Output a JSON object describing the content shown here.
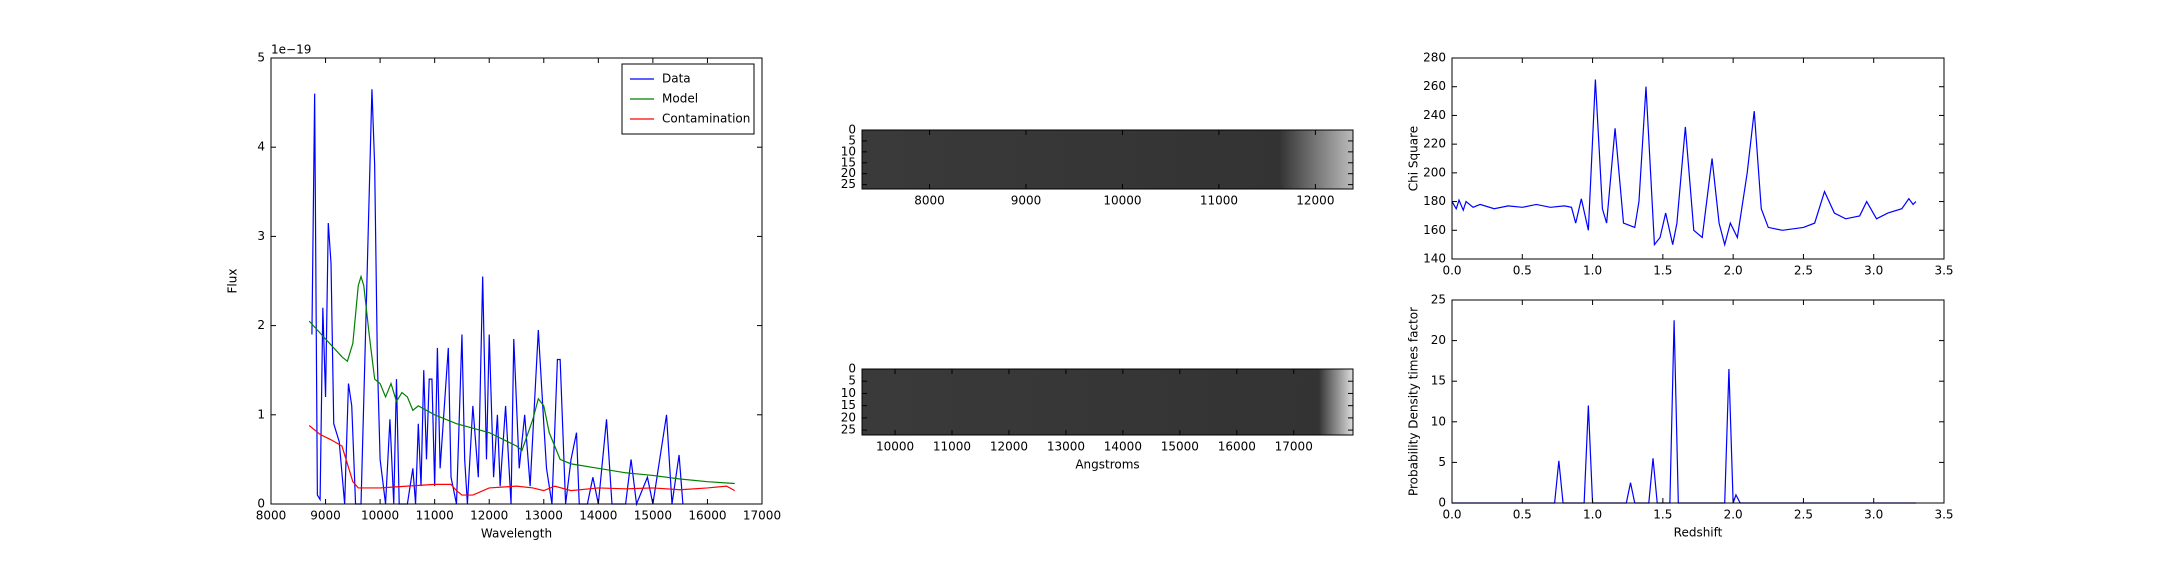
{
  "chart_data": [
    {
      "type": "line",
      "xlabel": "Wavelength",
      "ylabel": "Flux",
      "offset_label": "1e−19",
      "xlim": [
        8000,
        17000
      ],
      "xticks": [
        8000,
        9000,
        10000,
        11000,
        12000,
        13000,
        14000,
        15000,
        16000,
        17000
      ],
      "ylim": [
        0,
        5
      ],
      "yticks": [
        0,
        1,
        2,
        3,
        4,
        5
      ],
      "legend": "upper right",
      "series": [
        {
          "name": "Data",
          "color": "#0000ff",
          "x": [
            8750,
            8800,
            8850,
            8900,
            8950,
            9000,
            9050,
            9100,
            9150,
            9250,
            9350,
            9420,
            9480,
            9550,
            9650,
            9750,
            9850,
            9900,
            9950,
            10000,
            10100,
            10180,
            10250,
            10300,
            10350,
            10500,
            10600,
            10650,
            10700,
            10750,
            10800,
            10850,
            10900,
            10950,
            11000,
            11050,
            11100,
            11200,
            11250,
            11300,
            11400,
            11500,
            11550,
            11600,
            11700,
            11800,
            11880,
            11950,
            12000,
            12080,
            12150,
            12200,
            12300,
            12400,
            12450,
            12550,
            12650,
            12750,
            12900,
            13000,
            13050,
            13150,
            13250,
            13300,
            13400,
            13500,
            13600,
            13650,
            13800,
            13900,
            14000,
            14150,
            14250,
            14500,
            14600,
            14700,
            14900,
            15000,
            15250,
            15350,
            15480,
            15550
          ],
          "values": [
            1.9,
            4.6,
            0.1,
            0.05,
            2.2,
            1.2,
            3.15,
            2.7,
            0.9,
            0.7,
            0,
            1.35,
            1.1,
            0,
            0,
            2.3,
            4.65,
            3.8,
            1.6,
            0.5,
            0,
            0.95,
            0,
            1.4,
            0,
            0,
            0.4,
            0,
            0.9,
            0.2,
            1.5,
            0.5,
            1.4,
            1.4,
            0.2,
            1.75,
            0.4,
            1.3,
            1.75,
            0.3,
            0,
            1.9,
            0.5,
            0,
            1.1,
            0.3,
            2.55,
            0.5,
            1.9,
            0.3,
            1.0,
            0.2,
            1.1,
            0,
            1.85,
            0.4,
            1.0,
            0.2,
            1.95,
            0.9,
            0.4,
            0,
            1.62,
            1.62,
            0,
            0.5,
            0.8,
            0,
            0,
            0.3,
            0,
            0.95,
            0,
            0,
            0.5,
            0,
            0.3,
            0,
            1.0,
            0,
            0.55,
            0
          ]
        },
        {
          "name": "Model",
          "color": "#008000",
          "x": [
            8700,
            9000,
            9300,
            9400,
            9500,
            9600,
            9650,
            9700,
            9800,
            9900,
            10000,
            10100,
            10200,
            10300,
            10400,
            10500,
            10600,
            10700,
            11000,
            11400,
            12000,
            12500,
            12600,
            12800,
            12900,
            13000,
            13100,
            13300,
            13500,
            14000,
            14500,
            15000,
            15500,
            16000,
            16500
          ],
          "values": [
            2.05,
            1.85,
            1.65,
            1.6,
            1.8,
            2.45,
            2.55,
            2.45,
            1.9,
            1.4,
            1.35,
            1.2,
            1.35,
            1.15,
            1.25,
            1.2,
            1.05,
            1.1,
            1.0,
            0.9,
            0.8,
            0.65,
            0.6,
            0.95,
            1.18,
            1.1,
            0.8,
            0.5,
            0.45,
            0.4,
            0.35,
            0.32,
            0.28,
            0.25,
            0.23
          ]
        },
        {
          "name": "Contamination",
          "color": "#ff0000",
          "x": [
            8700,
            8900,
            9100,
            9300,
            9400,
            9500,
            9600,
            10000,
            10500,
            11000,
            11300,
            11400,
            11500,
            11700,
            12000,
            12500,
            12800,
            13000,
            13200,
            13500,
            14000,
            14500,
            15000,
            15500,
            16000,
            16350,
            16500
          ],
          "values": [
            0.88,
            0.78,
            0.72,
            0.65,
            0.45,
            0.25,
            0.18,
            0.18,
            0.2,
            0.22,
            0.22,
            0.15,
            0.1,
            0.1,
            0.18,
            0.2,
            0.18,
            0.15,
            0.2,
            0.15,
            0.18,
            0.17,
            0.18,
            0.16,
            0.18,
            0.2,
            0.15
          ]
        }
      ]
    },
    {
      "type": "image",
      "xlim": [
        7300,
        12390
      ],
      "xticks": [
        8000,
        9000,
        10000,
        11000,
        12000
      ],
      "ylim": [
        27,
        0
      ],
      "yticks": [
        0,
        5,
        10,
        15,
        20,
        25
      ]
    },
    {
      "type": "image",
      "xlabel": "Angstroms",
      "xlim": [
        9420,
        18040
      ],
      "xticks": [
        10000,
        11000,
        12000,
        13000,
        14000,
        15000,
        16000,
        17000
      ],
      "ylim": [
        27,
        0
      ],
      "yticks": [
        0,
        5,
        10,
        15,
        20,
        25
      ]
    },
    {
      "type": "line",
      "ylabel": "Chi Square",
      "xlim": [
        0,
        3.5
      ],
      "xticks": [
        0.0,
        0.5,
        1.0,
        1.5,
        2.0,
        2.5,
        3.0,
        3.5
      ],
      "ylim": [
        140,
        280
      ],
      "yticks": [
        140,
        160,
        180,
        200,
        220,
        240,
        260,
        280
      ],
      "series": [
        {
          "color": "#0000ff",
          "x": [
            0,
            0.03,
            0.05,
            0.08,
            0.1,
            0.15,
            0.2,
            0.3,
            0.4,
            0.5,
            0.6,
            0.7,
            0.8,
            0.85,
            0.88,
            0.92,
            0.97,
            1.02,
            1.07,
            1.1,
            1.16,
            1.22,
            1.3,
            1.33,
            1.38,
            1.44,
            1.48,
            1.52,
            1.57,
            1.6,
            1.66,
            1.72,
            1.78,
            1.85,
            1.9,
            1.94,
            1.98,
            2.03,
            2.1,
            2.15,
            2.2,
            2.25,
            2.35,
            2.5,
            2.58,
            2.65,
            2.72,
            2.8,
            2.9,
            2.95,
            3.02,
            3.1,
            3.2,
            3.25,
            3.28,
            3.3
          ],
          "values": [
            180,
            175,
            181,
            174,
            180,
            176,
            178,
            175,
            177,
            176,
            178,
            176,
            177,
            176,
            165,
            182,
            160,
            265,
            175,
            165,
            231,
            165,
            162,
            180,
            260,
            150,
            155,
            172,
            150,
            165,
            232,
            160,
            155,
            210,
            165,
            150,
            165,
            155,
            200,
            243,
            175,
            162,
            160,
            162,
            165,
            187,
            172,
            168,
            170,
            180,
            168,
            172,
            175,
            182,
            178,
            180
          ]
        }
      ]
    },
    {
      "type": "line",
      "xlabel": "Redshift",
      "ylabel": "Probability Density times factor",
      "xlim": [
        0,
        3.5
      ],
      "xticks": [
        0.0,
        0.5,
        1.0,
        1.5,
        2.0,
        2.5,
        3.0,
        3.5
      ],
      "ylim": [
        0,
        25
      ],
      "yticks": [
        0,
        5,
        10,
        15,
        20,
        25
      ],
      "series": [
        {
          "color": "#0000ff",
          "x": [
            0,
            0.73,
            0.76,
            0.79,
            0.94,
            0.97,
            1.0,
            1.24,
            1.27,
            1.3,
            1.4,
            1.43,
            1.46,
            1.55,
            1.58,
            1.61,
            1.94,
            1.97,
            2.0,
            2.02,
            2.05,
            3.3
          ],
          "values": [
            0,
            0,
            5.2,
            0,
            0,
            12,
            0,
            0,
            2.5,
            0,
            0,
            5.5,
            0,
            0,
            22.5,
            0,
            0,
            16.5,
            0,
            1,
            0,
            0
          ]
        }
      ]
    }
  ]
}
